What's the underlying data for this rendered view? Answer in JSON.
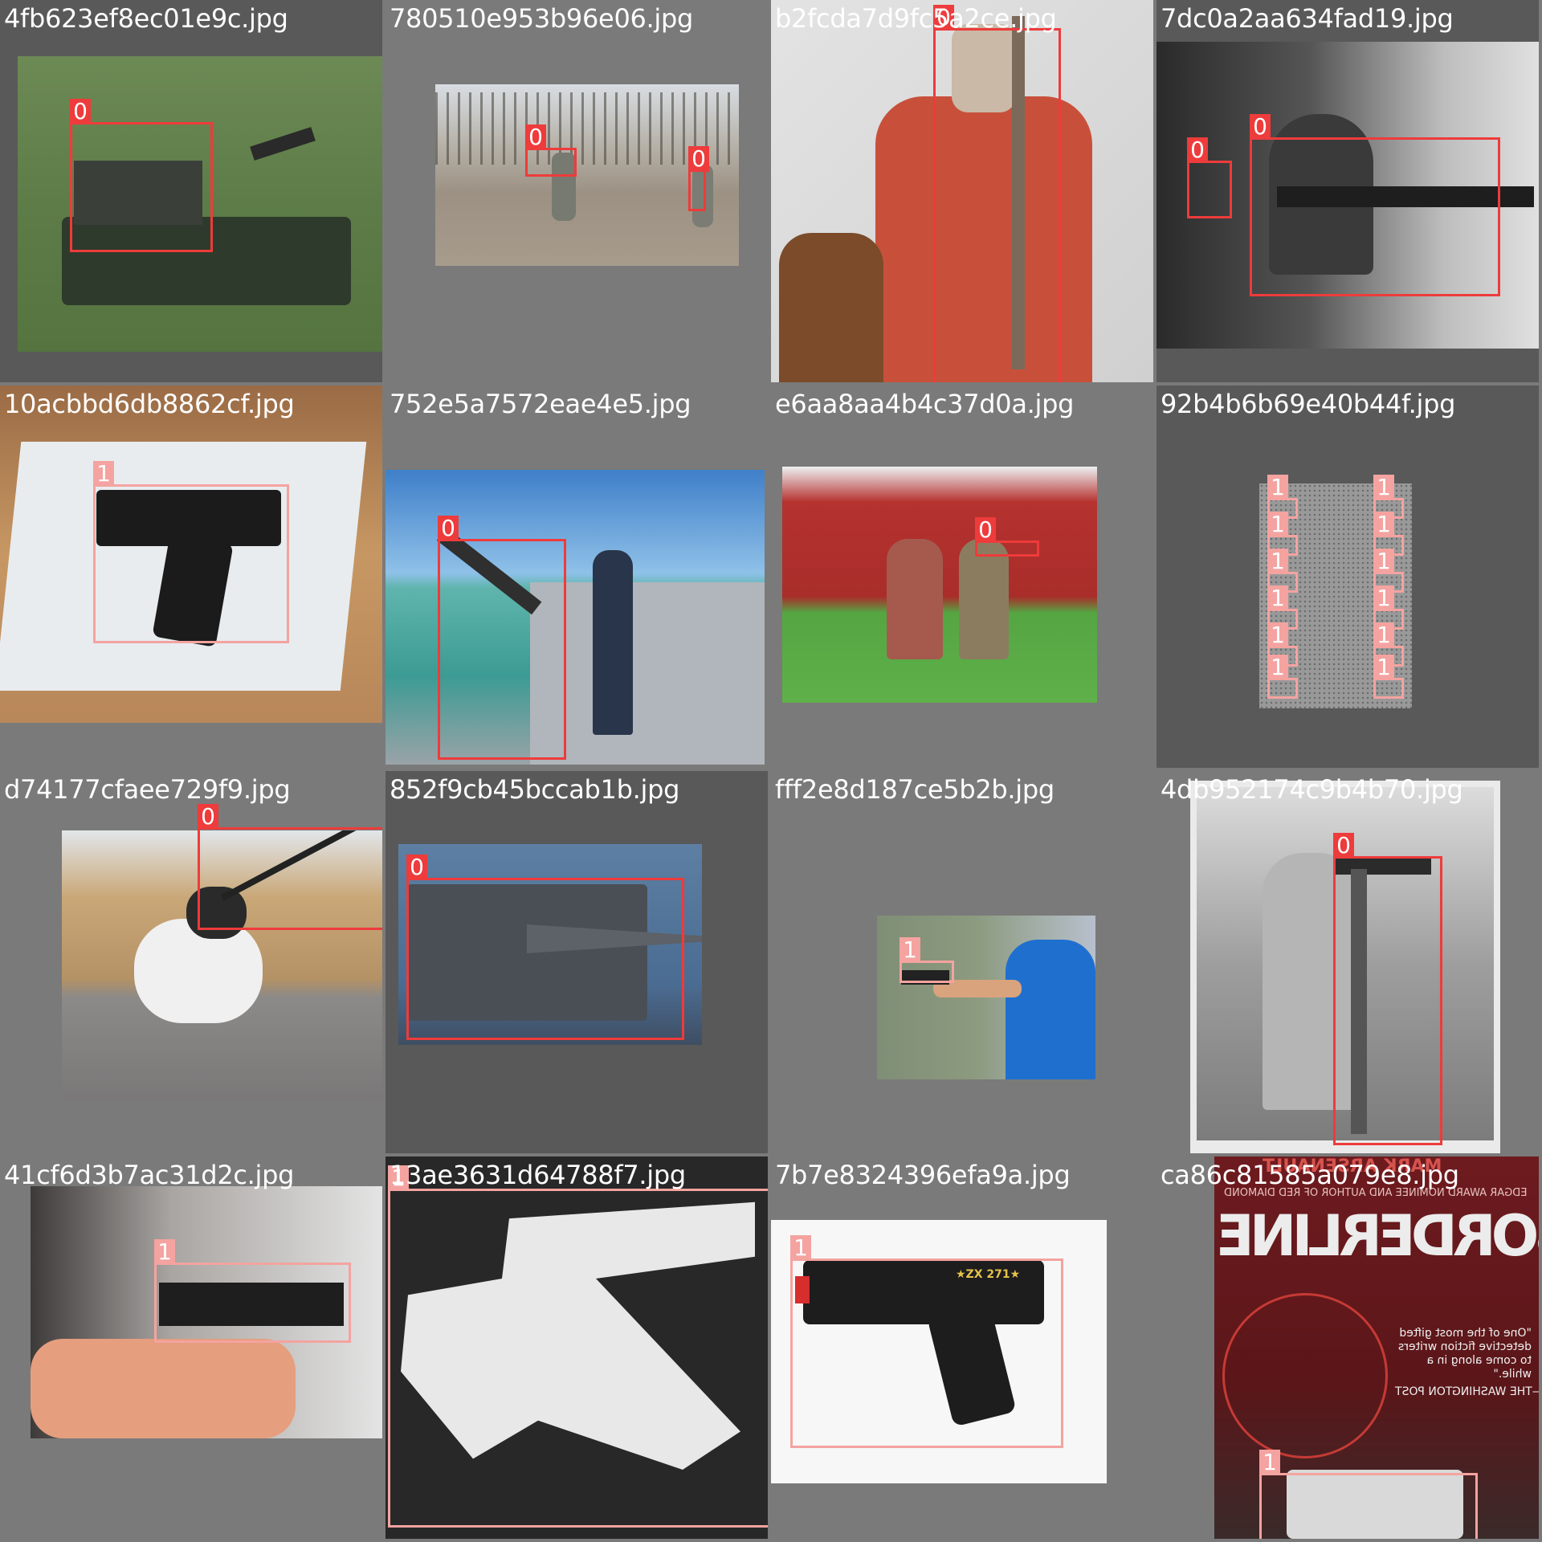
{
  "colors": {
    "class_0": "#ee3b3b",
    "class_1": "#f4a3a0",
    "pad": "#7a7a7a"
  },
  "tiles": [
    {
      "filename": "4fb623ef8ec01e9c.jpg",
      "boxes": [
        {
          "label": "0"
        }
      ]
    },
    {
      "filename": "780510e953b96e06.jpg",
      "boxes": [
        {
          "label": "0"
        },
        {
          "label": "0"
        }
      ]
    },
    {
      "filename": "b2fcda7d9fc5a2ce.jpg",
      "boxes": [
        {
          "label": "0"
        }
      ]
    },
    {
      "filename": "7dc0a2aa634fad19.jpg",
      "boxes": [
        {
          "label": "0"
        },
        {
          "label": "0"
        }
      ]
    },
    {
      "filename": "10acbbd6db8862cf.jpg",
      "boxes": [
        {
          "label": "1"
        }
      ]
    },
    {
      "filename": "752e5a7572eae4e5.jpg",
      "boxes": [
        {
          "label": "0"
        }
      ]
    },
    {
      "filename": "e6aa8aa4b4c37d0a.jpg",
      "boxes": [
        {
          "label": "0"
        }
      ]
    },
    {
      "filename": "92b4b6b69e40b44f.jpg",
      "boxes": [
        {
          "label": "1"
        },
        {
          "label": "1"
        },
        {
          "label": "1"
        },
        {
          "label": "1"
        },
        {
          "label": "1"
        },
        {
          "label": "1"
        },
        {
          "label": "1"
        },
        {
          "label": "1"
        },
        {
          "label": "1"
        },
        {
          "label": "1"
        },
        {
          "label": "1"
        },
        {
          "label": "1"
        }
      ]
    },
    {
      "filename": "d74177cfaee729f9.jpg",
      "boxes": [
        {
          "label": "0"
        }
      ]
    },
    {
      "filename": "852f9cb45bccab1b.jpg",
      "boxes": [
        {
          "label": "0"
        }
      ]
    },
    {
      "filename": "fff2e8d187ce5b2b.jpg",
      "boxes": [
        {
          "label": "1"
        }
      ]
    },
    {
      "filename": "4db952174c9b4b70.jpg",
      "boxes": [
        {
          "label": "0"
        }
      ]
    },
    {
      "filename": "41cf6d3b7ac31d2c.jpg",
      "boxes": [
        {
          "label": "1"
        }
      ]
    },
    {
      "filename": "13ae3631d64788f7.jpg",
      "boxes": [
        {
          "label": "1"
        }
      ]
    },
    {
      "filename": "7b7e8324396efa9a.jpg",
      "boxes": [
        {
          "label": "1"
        }
      ]
    },
    {
      "filename": "ca86c81585a079e8.jpg",
      "boxes": [
        {
          "label": "1"
        }
      ]
    }
  ],
  "cover_text": {
    "author": "MARK ARSENAULT",
    "award_line": "EDGAR AWARD NOMINEE AND AUTHOR OF RED DIAMOND",
    "title": "BORDERLINE",
    "quote": "\"One of the most gifted detective fiction writers to come along in a while.\"",
    "source": "—THE WASHINGTON POST"
  },
  "toy_marking": "★ZX 271★"
}
